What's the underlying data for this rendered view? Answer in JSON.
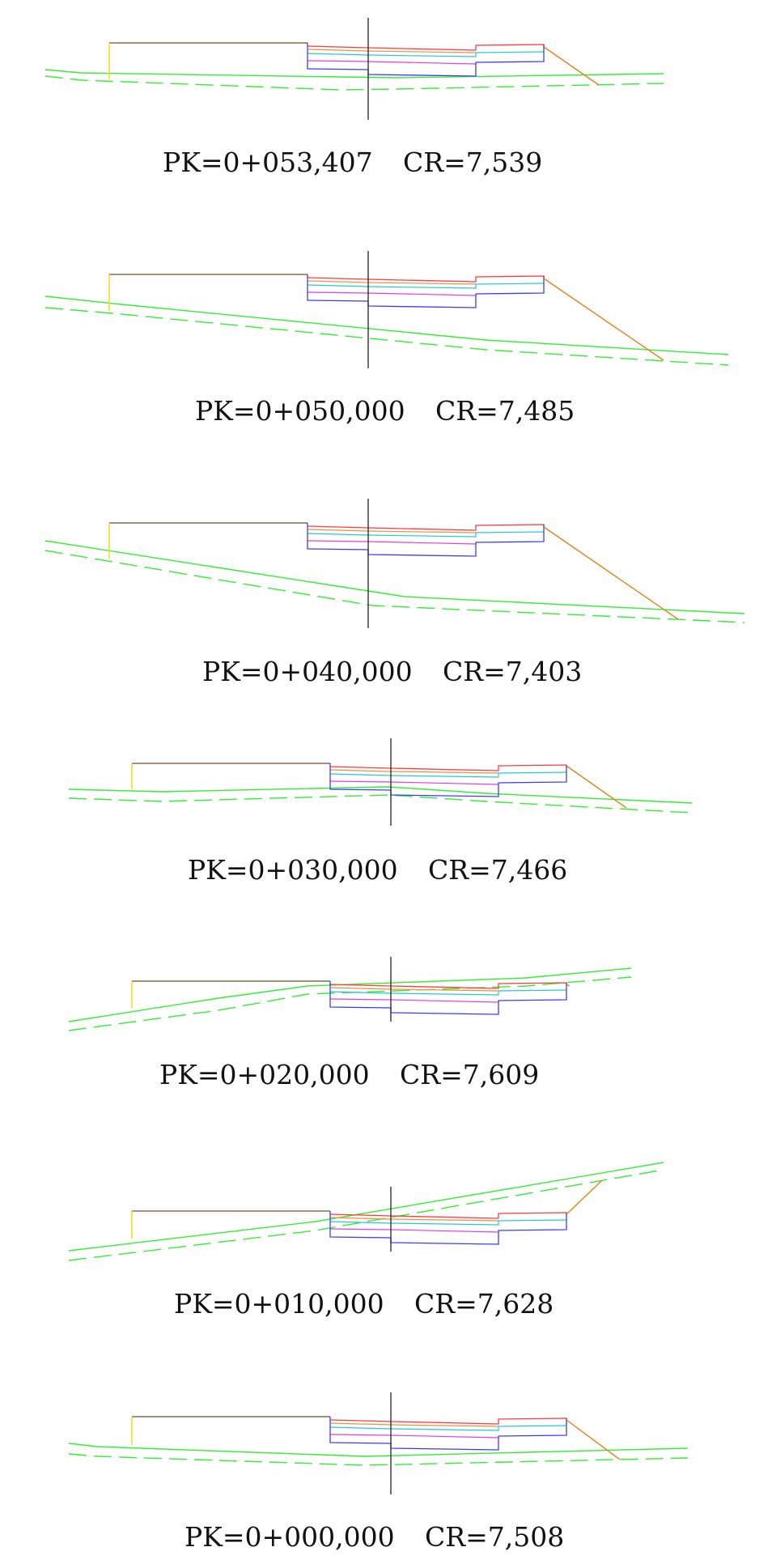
{
  "drawing": {
    "colors": {
      "background": "#ffffff",
      "terrain": "#33ee33",
      "axis": "#222222",
      "platform_top": "#8a6a4a",
      "wall": "#ffd400",
      "slope": "#e2821a",
      "layer_red": "#ff3b3b",
      "layer_orange": "#ff8a40",
      "layer_cyan": "#22cccc",
      "layer_magenta": "#e040e0",
      "layer_blue": "#3b3bff",
      "text": "#111111"
    },
    "sections": [
      {
        "pk": "PK=0+053,407",
        "cr": "CR=7,539"
      },
      {
        "pk": "PK=0+050,000",
        "cr": "CR=7,485"
      },
      {
        "pk": "PK=0+040,000",
        "cr": "CR=7,403"
      },
      {
        "pk": "PK=0+030,000",
        "cr": "CR=7,466"
      },
      {
        "pk": "PK=0+020,000",
        "cr": "CR=7,609"
      },
      {
        "pk": "PK=0+010,000",
        "cr": "CR=7,628"
      },
      {
        "pk": "PK=0+000,000",
        "cr": "CR=7,508"
      }
    ]
  }
}
